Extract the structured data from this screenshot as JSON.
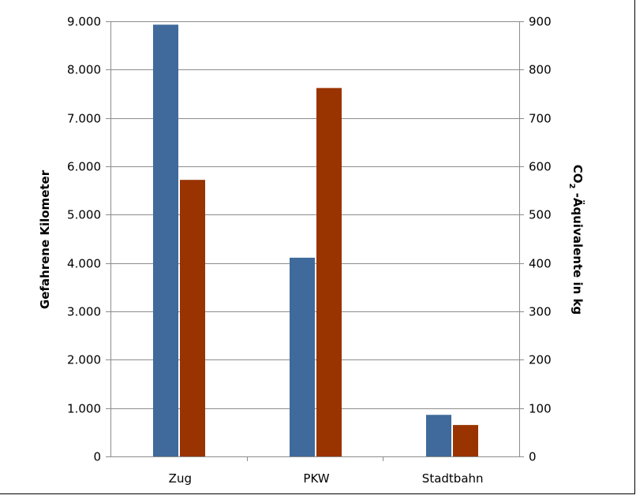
{
  "chart_data": {
    "type": "bar",
    "title": "",
    "categories": [
      "Zug",
      "PKW",
      "Stadtbahn"
    ],
    "series": [
      {
        "axis": "left",
        "color": "#3f6a9b",
        "values": [
          8930,
          4110,
          860
        ]
      },
      {
        "axis": "right",
        "color": "#993300",
        "values": [
          572,
          762,
          65
        ]
      }
    ],
    "y_left": {
      "label": "Gefahrene Kilometer",
      "ylim": [
        0,
        9000
      ],
      "ticks": [
        0,
        1000,
        2000,
        3000,
        4000,
        5000,
        6000,
        7000,
        8000,
        9000
      ],
      "tick_labels": [
        "0",
        "1.000",
        "2.000",
        "3.000",
        "4.000",
        "5.000",
        "6.000",
        "7.000",
        "8.000",
        "9.000"
      ]
    },
    "y_right": {
      "label_main": "CO",
      "label_sub": "2",
      "label_rest": " -Äquivalente in kg",
      "ylim": [
        0,
        900
      ],
      "ticks": [
        0,
        100,
        200,
        300,
        400,
        500,
        600,
        700,
        800,
        900
      ],
      "tick_labels": [
        "0",
        "100",
        "200",
        "300",
        "400",
        "500",
        "600",
        "700",
        "800",
        "900"
      ]
    },
    "grid": true,
    "legend": "none"
  }
}
